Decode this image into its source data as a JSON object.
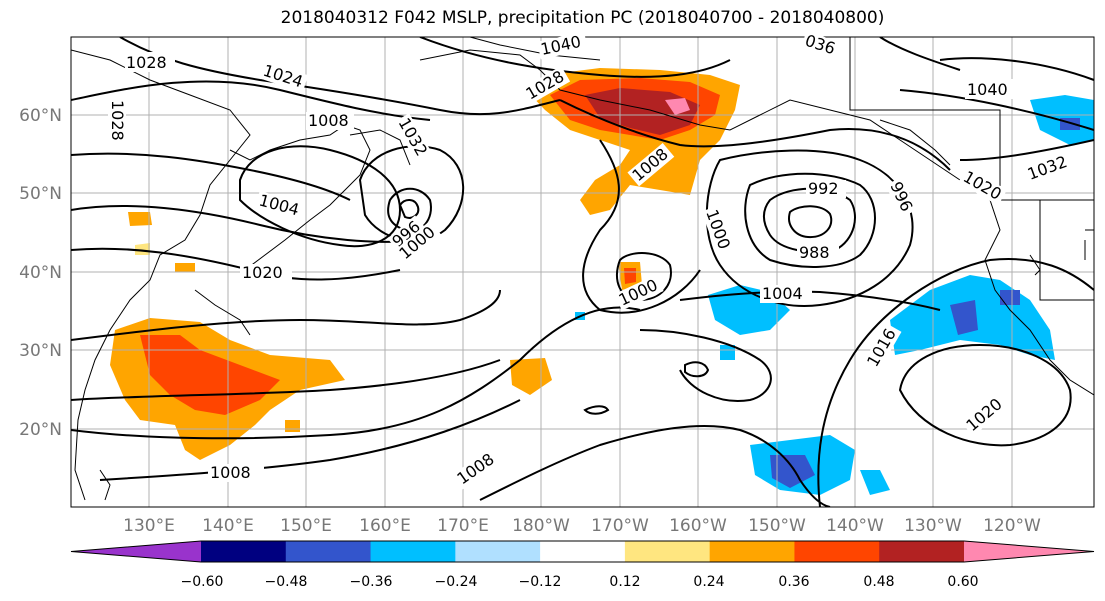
{
  "title": "2018040312 F042 MSLP, precipitation PC (2018040700 - 2018040800)",
  "lat_labels": [
    "60°N",
    "50°N",
    "40°N",
    "30°N",
    "20°N"
  ],
  "lon_labels": [
    "130°E",
    "140°E",
    "150°E",
    "160°E",
    "170°E",
    "180°W",
    "170°W",
    "160°W",
    "150°W",
    "140°W",
    "130°W",
    "120°W"
  ],
  "contour_labels": [
    "1028",
    "1028",
    "1024",
    "1008",
    "1032",
    "1040",
    "036",
    "1028",
    "1008",
    "1040",
    "1032",
    "1020",
    "1004",
    "996",
    "1000",
    "1020",
    "1000",
    "992",
    "996",
    "988",
    "1000",
    "1004",
    "1016",
    "1020",
    "1008",
    "1008"
  ],
  "colorbar": {
    "colors": [
      "#9933cc",
      "#000080",
      "#3355cc",
      "#00bfff",
      "#b0e0ff",
      "#ffffff",
      "#ffe680",
      "#ffa500",
      "#ff4500",
      "#b22222",
      "#ff88b0"
    ],
    "ticks": [
      "−0.60",
      "−0.48",
      "−0.36",
      "−0.24",
      "−0.12",
      "0.12",
      "0.24",
      "0.36",
      "0.48",
      "0.60"
    ]
  }
}
